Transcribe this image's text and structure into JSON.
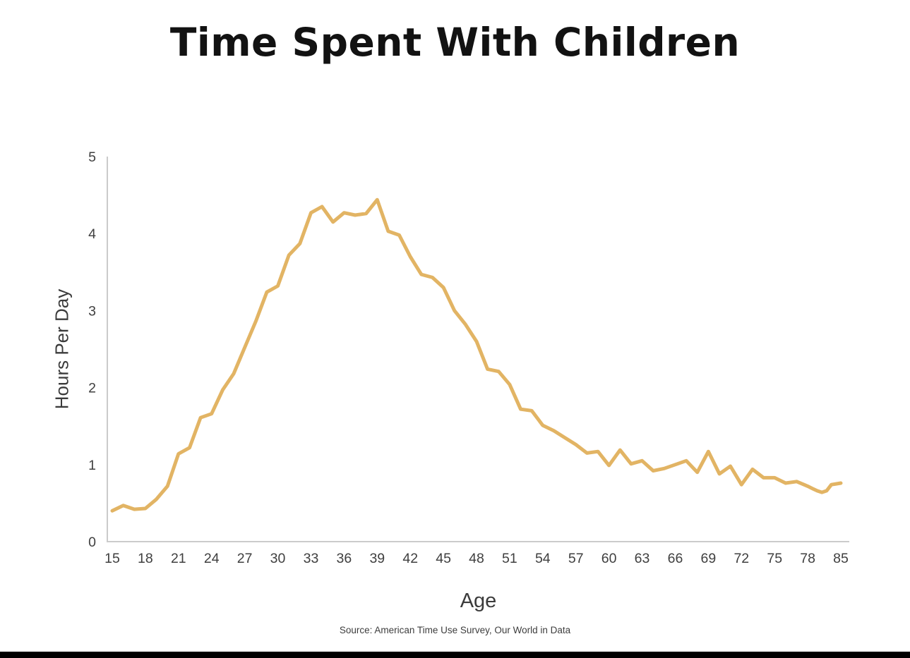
{
  "page": {
    "bottom_bar_color": "#000000",
    "background_color": "#ffffff"
  },
  "chart_data": {
    "type": "line",
    "title": "Time Spent With Children",
    "xlabel": "Age",
    "ylabel": "Hours Per Day",
    "source": "Source: American Time Use Survey, Our World in Data",
    "x": [
      15,
      16,
      17,
      18,
      19,
      20,
      21,
      22,
      23,
      24,
      25,
      26,
      27,
      28,
      29,
      30,
      31,
      32,
      33,
      34,
      35,
      36,
      37,
      38,
      39,
      40,
      41,
      42,
      43,
      44,
      45,
      46,
      47,
      48,
      49,
      50,
      51,
      52,
      53,
      54,
      55,
      56,
      57,
      58,
      59,
      60,
      61,
      62,
      63,
      64,
      65,
      66,
      67,
      68,
      69,
      70,
      71,
      72,
      73,
      74,
      75,
      76,
      77,
      78,
      79,
      80,
      81,
      82,
      83,
      84,
      85
    ],
    "values": [
      0.4,
      0.47,
      0.42,
      0.43,
      0.55,
      0.72,
      1.14,
      1.22,
      1.61,
      1.66,
      1.97,
      2.18,
      2.52,
      2.86,
      3.24,
      3.32,
      3.72,
      3.87,
      4.27,
      4.35,
      4.15,
      4.27,
      4.24,
      4.26,
      4.44,
      4.03,
      3.98,
      3.7,
      3.47,
      3.43,
      3.3,
      3.0,
      2.82,
      2.6,
      2.24,
      2.21,
      2.04,
      1.72,
      1.7,
      1.51,
      1.44,
      1.35,
      1.26,
      1.15,
      1.17,
      0.99,
      1.19,
      1.01,
      1.05,
      0.92,
      0.95,
      1.0,
      1.05,
      0.9,
      1.17,
      0.88,
      0.98,
      0.74,
      0.94,
      0.83,
      0.83,
      0.76,
      0.78,
      0.72,
      0.69,
      0.66,
      0.64,
      0.66,
      0.74,
      0.75,
      0.76
    ],
    "xticklabels": [
      "15",
      "18",
      "21",
      "24",
      "27",
      "30",
      "33",
      "36",
      "39",
      "42",
      "45",
      "48",
      "51",
      "54",
      "57",
      "60",
      "63",
      "66",
      "69",
      "72",
      "75",
      "78",
      "85"
    ],
    "yticks": [
      0,
      1,
      2,
      3,
      4,
      5
    ],
    "ylim": [
      0,
      5
    ],
    "xlim": [
      15,
      85
    ],
    "line_color": "#E2B464",
    "axis_color": "#CBCBCB",
    "text_color": "#3F3F3F",
    "grid": false,
    "legend": false
  }
}
